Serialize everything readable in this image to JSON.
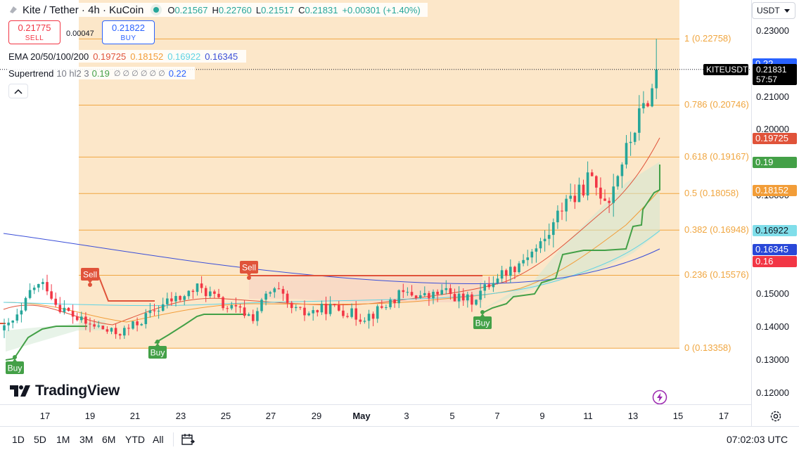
{
  "header": {
    "title": "Kite / Tether · 4h · KuCoin",
    "ohlc": [
      {
        "k": "O",
        "v": "0.21567"
      },
      {
        "k": "H",
        "v": "0.22760"
      },
      {
        "k": "L",
        "v": "0.21517"
      },
      {
        "k": "C",
        "v": "0.21831"
      }
    ],
    "change": "+0.00301 (+1.40%)",
    "colors": {
      "up": "#26a69a",
      "down": "#f23645"
    }
  },
  "trade": {
    "sell_price": "0.21775",
    "sell_label": "SELL",
    "spread": "0.00047",
    "buy_price": "0.21822",
    "buy_label": "BUY"
  },
  "indicators": {
    "ema": {
      "label": "EMA 20/50/100/200",
      "values": [
        "0.19725",
        "0.18152",
        "0.16922",
        "0.16345"
      ],
      "colors": [
        "#e0533a",
        "#f29d38",
        "#5fd3e4",
        "#3b4fd8"
      ]
    },
    "supertrend": {
      "label": "Supertrend",
      "params": "10 hl2 3",
      "value_up": "0.19",
      "nulls": "∅ ∅ ∅ ∅ ∅ ∅",
      "value_down": "0.22",
      "colors": {
        "up": "#43a047",
        "down": "#2962ff"
      }
    },
    "collapse_icon": "chevron-up-icon"
  },
  "y_axis": {
    "currency": "USDT",
    "ticks": [
      "0.23000",
      "0.22000",
      "0.21000",
      "0.20000",
      "0.19000",
      "0.18000",
      "0.17000",
      "0.16000",
      "0.15000",
      "0.14000",
      "0.13000",
      "0.12000"
    ],
    "badges": [
      {
        "text": "0.22",
        "bg": "#2962ff",
        "fg": "#ffffff"
      },
      {
        "text": "0.19725",
        "bg": "#e0533a",
        "fg": "#ffffff"
      },
      {
        "text": "0.19",
        "bg": "#43a047",
        "fg": "#ffffff"
      },
      {
        "text": "0.18152",
        "bg": "#f29d38",
        "fg": "#ffffff"
      },
      {
        "text": "0.16922",
        "bg": "#80deea",
        "fg": "#131722"
      },
      {
        "text": "0.16345",
        "bg": "#2948d8",
        "fg": "#ffffff"
      },
      {
        "text": "0.16",
        "bg": "#f23645",
        "fg": "#ffffff"
      }
    ]
  },
  "current": {
    "symbol": "KITEUSDT",
    "price": "0.21831",
    "countdown": "57:57"
  },
  "fib": {
    "levels": [
      {
        "ratio": 1,
        "label": "1 (0.22758)"
      },
      {
        "ratio": 0.786,
        "label": "0.786 (0.20746)"
      },
      {
        "ratio": 0.618,
        "label": "0.618 (0.19167)"
      },
      {
        "ratio": 0.5,
        "label": "0.5 (0.18058)"
      },
      {
        "ratio": 0.382,
        "label": "0.382 (0.16948)"
      },
      {
        "ratio": 0.236,
        "label": "0.236 (0.15576)"
      },
      {
        "ratio": 0,
        "label": "0 (0.13358)"
      }
    ],
    "color": "#f0a640",
    "fill": "#fce3bf"
  },
  "signals": [
    {
      "text": "Sell",
      "type": "sell"
    },
    {
      "text": "Sell",
      "type": "sell"
    },
    {
      "text": "Buy",
      "type": "buy"
    },
    {
      "text": "Buy",
      "type": "buy"
    },
    {
      "text": "Buy",
      "type": "buy"
    }
  ],
  "x_axis": {
    "ticks": [
      {
        "label": "17"
      },
      {
        "label": "19"
      },
      {
        "label": "21"
      },
      {
        "label": "23"
      },
      {
        "label": "25"
      },
      {
        "label": "27"
      },
      {
        "label": "29"
      },
      {
        "label": "May",
        "bold": true
      },
      {
        "label": "3"
      },
      {
        "label": "5"
      },
      {
        "label": "7"
      },
      {
        "label": "9"
      },
      {
        "label": "11"
      },
      {
        "label": "13"
      },
      {
        "label": "15"
      },
      {
        "label": "17"
      }
    ]
  },
  "brand": "TradingView",
  "bottom": {
    "timeframes": [
      "1D",
      "5D",
      "1M",
      "3M",
      "6M",
      "YTD",
      "All"
    ],
    "clock": "07:02:03 UTC",
    "icons": [
      "calendar-range-icon",
      "settings-icon",
      "lightning-icon"
    ]
  }
}
